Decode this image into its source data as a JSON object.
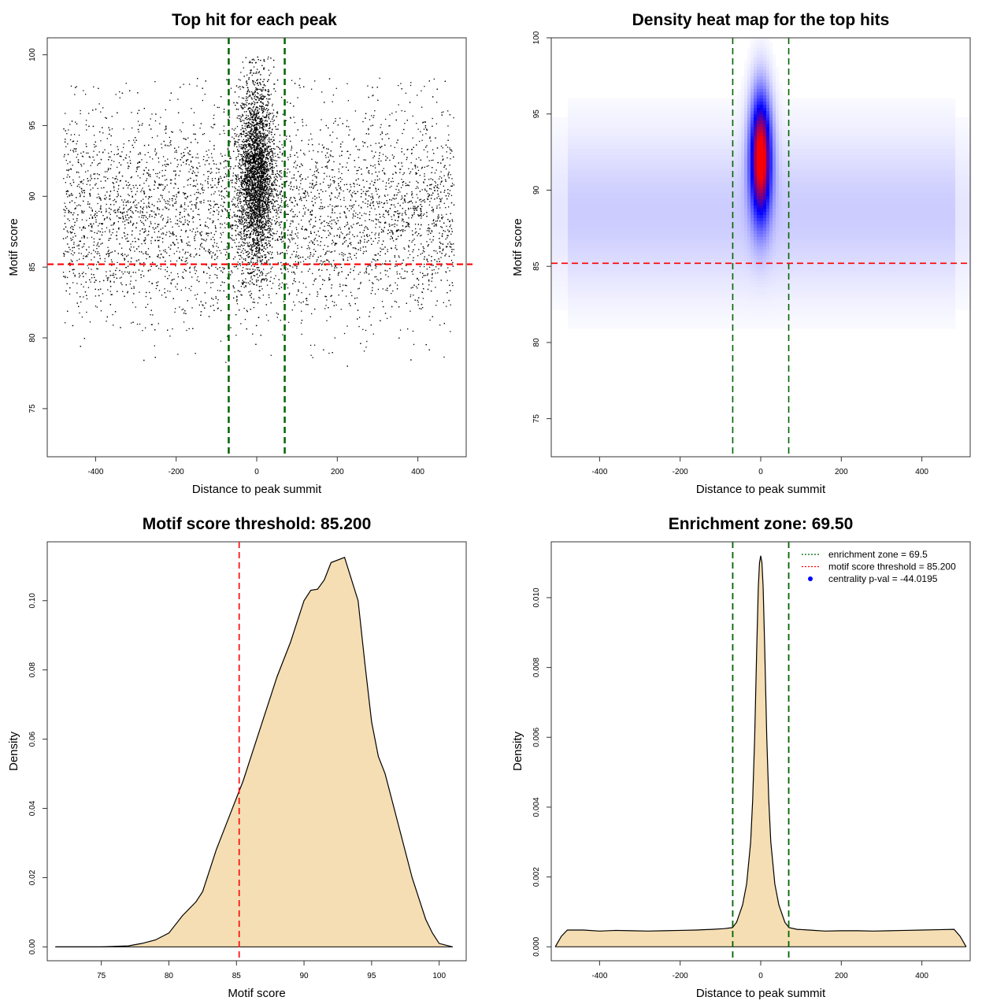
{
  "chart_data": [
    {
      "type": "scatter",
      "title": "Top hit for each peak",
      "xlabel": "Distance to peak summit",
      "ylabel": "Motif score",
      "xlim": [
        -520,
        520
      ],
      "ylim": [
        71.6,
        101.2
      ],
      "x_ticks": [
        -400,
        -200,
        0,
        200,
        400
      ],
      "y_ticks": [
        75,
        80,
        85,
        90,
        95,
        100
      ],
      "background_points": {
        "x_range": [
          -480,
          490
        ],
        "y_center": 88.7,
        "y_sd": 3.6,
        "approx_count": 6000
      },
      "central_points": {
        "x_center": 0,
        "x_sd": 22,
        "y_center": 91.5,
        "y_sd": 3.2,
        "approx_count": 4500
      },
      "point_color": "#000000",
      "vlines": [
        -69.5,
        69.5
      ],
      "hline": 85.2,
      "vline_color": "#006400",
      "hline_color": "#ff0000"
    },
    {
      "type": "heatmap",
      "title": "Density heat map for the top hits",
      "xlabel": "Distance to peak summit",
      "ylabel": "Motif score",
      "xlim": [
        -520,
        520
      ],
      "ylim": [
        72.5,
        100
      ],
      "x_ticks": [
        -400,
        -200,
        0,
        200,
        400
      ],
      "y_ticks": [
        75,
        80,
        85,
        90,
        95,
        100
      ],
      "hotspot": {
        "x": 0,
        "y": 92.2
      },
      "colors": [
        "#ffffff",
        "#0000ff",
        "#ff0000"
      ],
      "vlines": [
        -69.5,
        69.5
      ],
      "hline": 85.2,
      "vline_color": "#006400",
      "hline_color": "#ff0000"
    },
    {
      "type": "area",
      "title": "Motif score threshold: 85.200",
      "xlabel": "Motif score",
      "ylabel": "Density",
      "xlim": [
        71,
        102
      ],
      "ylim": [
        -0.004,
        0.117
      ],
      "x_ticks": [
        75,
        80,
        85,
        90,
        95,
        100
      ],
      "y_ticks": [
        "0.00",
        "0.02",
        "0.04",
        "0.06",
        "0.08",
        "0.10"
      ],
      "x": [
        71.6,
        75,
        77,
        78,
        79,
        80,
        81,
        82,
        82.5,
        83,
        83.5,
        84,
        84.5,
        85,
        85.5,
        86,
        87,
        88,
        89,
        89.5,
        90,
        90.5,
        91,
        91.5,
        92,
        93,
        94,
        94.5,
        95,
        95.5,
        96,
        97,
        98,
        99,
        99.5,
        100,
        101
      ],
      "y": [
        0,
        0,
        0.0003,
        0.001,
        0.002,
        0.004,
        0.009,
        0.013,
        0.016,
        0.022,
        0.028,
        0.033,
        0.038,
        0.043,
        0.048,
        0.054,
        0.066,
        0.078,
        0.088,
        0.094,
        0.1,
        0.103,
        0.1033,
        0.106,
        0.111,
        0.1125,
        0.1,
        0.082,
        0.065,
        0.055,
        0.05,
        0.035,
        0.02,
        0.008,
        0.004,
        0.001,
        0
      ],
      "fill": "#f5deb3",
      "vline": 85.2,
      "vline_color": "#ff0000"
    },
    {
      "type": "area",
      "title": "Enrichment zone: 69.50",
      "xlabel": "Distance to peak summit",
      "ylabel": "Density",
      "xlim": [
        -520,
        520
      ],
      "ylim": [
        -0.0004,
        0.0116
      ],
      "x_ticks": [
        -400,
        -200,
        0,
        200,
        400
      ],
      "y_ticks": [
        "0.000",
        "0.002",
        "0.004",
        "0.006",
        "0.008",
        "0.010"
      ],
      "x": [
        -510,
        -495,
        -480,
        -440,
        -400,
        -360,
        -320,
        -280,
        -240,
        -200,
        -160,
        -120,
        -90,
        -70,
        -60,
        -45,
        -35,
        -25,
        -20,
        -15,
        -10,
        -6,
        -3,
        0,
        3,
        6,
        10,
        15,
        20,
        25,
        35,
        45,
        60,
        70,
        90,
        120,
        160,
        200,
        240,
        280,
        320,
        360,
        400,
        440,
        480,
        495,
        510
      ],
      "y": [
        0,
        0.0003,
        0.00048,
        0.00048,
        0.00045,
        0.00047,
        0.00046,
        0.00045,
        0.00046,
        0.00047,
        0.00048,
        0.0005,
        0.00052,
        0.00055,
        0.0007,
        0.0012,
        0.0018,
        0.003,
        0.0042,
        0.006,
        0.0085,
        0.0103,
        0.011,
        0.0112,
        0.011,
        0.0103,
        0.0085,
        0.006,
        0.0042,
        0.003,
        0.0018,
        0.0012,
        0.0007,
        0.00055,
        0.0005,
        0.00048,
        0.00045,
        0.00046,
        0.00046,
        0.00045,
        0.00046,
        0.00047,
        0.00048,
        0.00049,
        0.0005,
        0.0003,
        0
      ],
      "fill": "#f5deb3",
      "vlines": [
        -69.5,
        69.5
      ],
      "vline_color": "#006400",
      "legend": {
        "position": "top-right",
        "entries": [
          {
            "label": "enrichment zone = 69.5",
            "color": "#006400",
            "kind": "dotted-line"
          },
          {
            "label": "motif score threshold = 85.200",
            "color": "#ff0000",
            "kind": "dotted-line"
          },
          {
            "label": "centrality p-val = -44.0195",
            "color": "#0000ff",
            "kind": "point"
          }
        ]
      }
    }
  ]
}
